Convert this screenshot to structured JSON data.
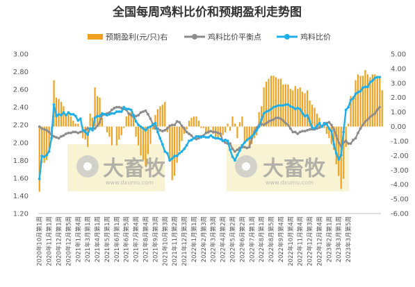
{
  "chart_data": {
    "type": "bar+line",
    "title": "全国每周鸡料比价和预期盈利走势图",
    "legend": [
      {
        "name": "预期盈利(元/只)右",
        "kind": "bar",
        "color": "#f0a01e"
      },
      {
        "name": "鸡料比价平衡点",
        "kind": "line",
        "color": "#8c8c8c"
      },
      {
        "name": "鸡料比价",
        "kind": "line",
        "color": "#1eaee8"
      }
    ],
    "legend_position": "top",
    "grid": false,
    "left_axis": {
      "ylim": [
        1.2,
        3.0
      ],
      "ticks": [
        "1.20",
        "1.40",
        "1.60",
        "1.80",
        "2.00",
        "2.20",
        "2.40",
        "2.60",
        "2.80",
        "3.00"
      ]
    },
    "right_axis": {
      "ylim": [
        -6.0,
        5.0
      ],
      "ticks": [
        "-6.00",
        "-5.00",
        "-4.00",
        "-3.00",
        "-2.00",
        "-1.00",
        "0.00",
        "1.00",
        "2.00",
        "3.00",
        "4.00",
        "5.00"
      ]
    },
    "x_tick_labels": [
      "2020年10月第1周",
      "2020年11月第1周",
      "2020年12月第1周",
      "2020年12月第5周",
      "2021年1月第4周",
      "2021年3月第1周",
      "2021年4月第1周",
      "2021年5月第1周",
      "2021年6月第1周",
      "2021年6月第5周",
      "2021年7月第4周",
      "2021年8月第4周",
      "2021年9月第3周",
      "2021年10月第3周",
      "2021年11月第2周",
      "2021年12月第3周",
      "2022年1月第1周",
      "2022年2月第3周",
      "2022年3月第3周",
      "2022年4月第2周",
      "2022年5月第2周",
      "2022年6月第2周",
      "2022年7月第1周",
      "2022年8月第1周",
      "2022年8月第5周",
      "2022年9月第4周",
      "2022年10月第4周",
      "2022年11月第4周",
      "2022年12月第3周",
      "2022年12月第4周",
      "2023年2月第1周",
      "2023年3月第1周",
      "2023年3月第5周"
    ],
    "x_tick_step": 4,
    "series": [
      {
        "name": "鸡料比价",
        "axis": "left",
        "color": "#1eaee8",
        "values": [
          1.59,
          1.85,
          1.84,
          1.86,
          1.9,
          2.05,
          2.43,
          2.3,
          2.32,
          2.31,
          2.34,
          2.31,
          2.34,
          2.32,
          2.32,
          2.3,
          2.25,
          2.27,
          2.14,
          2.12,
          2.09,
          2.16,
          2.14,
          2.28,
          2.3,
          2.3,
          2.33,
          2.32,
          2.31,
          2.32,
          2.33,
          2.33,
          2.35,
          2.35,
          2.35,
          2.4,
          2.38,
          2.38,
          2.37,
          2.31,
          2.24,
          2.2,
          2.18,
          2.16,
          2.14,
          2.17,
          2.18,
          2.2,
          2.22,
          2.12,
          2.05,
          1.98,
          1.9,
          1.88,
          1.8,
          1.82,
          1.85,
          1.85,
          1.88,
          1.9,
          1.93,
          1.97,
          2.02,
          2.03,
          2.05,
          2.07,
          2.07,
          2.06,
          2.07,
          2.06,
          2.06,
          2.08,
          2.06,
          2.05,
          2.05,
          2.04,
          2.02,
          2.03,
          2.02,
          1.92,
          1.84,
          1.8,
          1.86,
          1.91,
          1.97,
          2.0,
          2.03,
          2.05,
          2.07,
          2.1,
          2.14,
          2.18,
          2.26,
          2.33,
          2.35,
          2.36,
          2.38,
          2.4,
          2.41,
          2.42,
          2.42,
          2.42,
          2.43,
          2.43,
          2.41,
          2.4,
          2.38,
          2.39,
          2.38,
          2.33,
          2.3,
          2.31,
          2.24,
          2.17,
          2.16,
          2.19,
          2.22,
          2.18,
          2.22,
          2.21,
          2.16,
          2.13,
          1.98,
          1.88,
          1.81,
          1.86,
          2.12,
          2.37,
          2.4,
          2.48,
          2.5,
          2.55,
          2.57,
          2.58,
          2.62,
          2.63,
          2.63,
          2.68,
          2.7,
          2.73,
          2.74,
          2.74
        ]
      },
      {
        "name": "鸡料比价平衡点",
        "axis": "left",
        "color": "#8c8c8c",
        "values": [
          2.18,
          2.16,
          2.15,
          2.14,
          2.12,
          2.09,
          2.07,
          2.06,
          2.05,
          2.07,
          2.08,
          2.1,
          2.11,
          2.11,
          2.12,
          2.12,
          2.11,
          2.12,
          2.13,
          2.14,
          2.16,
          2.16,
          2.16,
          2.16,
          2.19,
          2.23,
          2.31,
          2.32,
          2.33,
          2.34,
          2.37,
          2.39,
          2.4,
          2.4,
          2.39,
          2.38,
          2.37,
          2.33,
          2.31,
          2.29,
          2.3,
          2.31,
          2.34,
          2.35,
          2.36,
          2.32,
          2.27,
          2.21,
          2.16,
          2.16,
          2.14,
          2.13,
          2.14,
          2.16,
          2.19,
          2.2,
          2.2,
          2.24,
          2.23,
          2.19,
          2.16,
          2.12,
          2.1,
          2.08,
          2.05,
          2.04,
          2.05,
          2.07,
          2.08,
          2.11,
          2.12,
          2.13,
          2.12,
          2.12,
          2.11,
          2.1,
          2.02,
          2.0,
          1.99,
          1.99,
          1.93,
          1.9,
          1.92,
          1.94,
          1.95,
          1.95,
          1.94,
          1.95,
          2.05,
          2.12,
          2.17,
          2.2,
          2.21,
          2.2,
          2.22,
          2.24,
          2.25,
          2.26,
          2.28,
          2.28,
          2.27,
          2.25,
          2.22,
          2.2,
          2.16,
          2.12,
          2.12,
          2.1,
          2.12,
          2.13,
          2.13,
          2.14,
          2.15,
          2.15,
          2.15,
          2.16,
          2.17,
          2.18,
          2.2,
          2.22,
          2.23,
          2.2,
          2.15,
          2.08,
          2.0,
          1.96,
          2.0,
          2.02,
          1.99,
          1.99,
          2.03,
          2.05,
          2.11,
          2.16,
          2.2,
          2.24,
          2.26,
          2.29,
          2.31,
          2.33,
          2.37,
          2.4
        ]
      },
      {
        "name": "预期盈利(元/只)右",
        "axis": "right",
        "color": "#f0a01e",
        "values": [
          -4.5,
          -2.5,
          -2.5,
          -2.3,
          -1.8,
          -0.4,
          3.2,
          2.0,
          1.9,
          1.7,
          1.4,
          0.8,
          0.9,
          0.7,
          0.4,
          0.2,
          0.2,
          0.0,
          -0.8,
          -0.9,
          -1.4,
          0.9,
          0.6,
          2.7,
          2.1,
          2.0,
          0.6,
          0.0,
          -0.4,
          -0.7,
          -1.3,
          0.0,
          -1.3,
          -0.9,
          -0.6,
          -0.1,
          0.7,
          0.9,
          1.0,
          0.6,
          -0.7,
          -1.3,
          -2.0,
          -2.3,
          -2.7,
          -1.9,
          -1.2,
          -0.2,
          0.8,
          1.2,
          1.4,
          1.5,
          1.7,
          -0.4,
          -2.3,
          -3.7,
          -3.4,
          -2.5,
          -1.7,
          -1.0,
          -0.5,
          -0.2,
          0.4,
          0.6,
          0.7,
          0.7,
          0.4,
          -0.1,
          -0.1,
          -0.4,
          -0.5,
          0.0,
          -0.5,
          -0.7,
          -0.8,
          -0.7,
          -0.6,
          -0.4,
          0.2,
          -0.3,
          0.7,
          0.2,
          -0.8,
          0.3,
          0.7,
          -1.1,
          -1.0,
          -1.4,
          -1.2,
          -0.8,
          -0.6,
          1.0,
          1.4,
          2.7,
          3.1,
          3.3,
          3.5,
          3.5,
          3.4,
          3.3,
          3.3,
          2.9,
          2.9,
          2.9,
          2.6,
          2.5,
          2.8,
          2.6,
          2.7,
          2.4,
          2.3,
          2.5,
          1.8,
          1.5,
          1.3,
          0.9,
          0.6,
          0.1,
          -0.1,
          -0.5,
          -0.8,
          -1.2,
          -1.6,
          -2.6,
          -3.4,
          -4.3,
          -3.6,
          -1.4,
          0.2,
          2.1,
          2.1,
          3.2,
          3.6,
          3.5,
          3.5,
          3.9,
          3.6,
          3.4,
          3.6,
          3.6,
          3.5,
          3.4,
          2.5
        ]
      }
    ]
  },
  "watermark": {
    "brand": "大畜牧",
    "url": "www.dxumu.com"
  }
}
